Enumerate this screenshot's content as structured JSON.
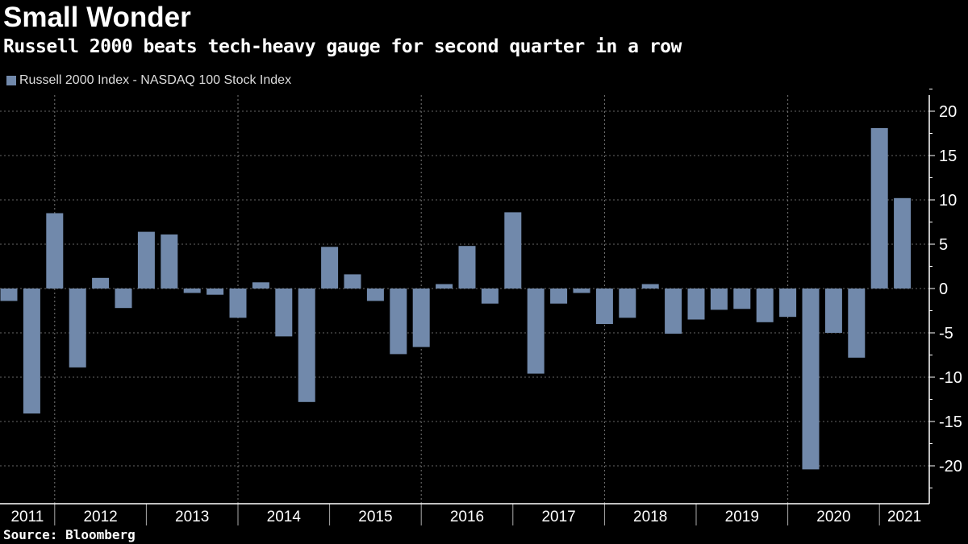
{
  "title": "Small Wonder",
  "subtitle": "Russell 2000 beats tech-heavy gauge for second quarter in a row",
  "source": "Source: Bloomberg",
  "chart_data": {
    "type": "bar",
    "title": "Small Wonder",
    "subtitle": "Russell 2000 beats tech-heavy gauge for second quarter in a row",
    "xlabel": "",
    "ylabel": "",
    "ylim": [
      -24,
      22
    ],
    "yticks": [
      20,
      15,
      10,
      5,
      0,
      -5,
      -10,
      -15,
      -20
    ],
    "ytick_labels": [
      "20",
      "15",
      "10",
      "5",
      "0",
      "-5",
      "-10",
      "-15",
      "-20"
    ],
    "y_axis_side": "right",
    "grid": true,
    "legend_placement": "top-left",
    "bar_color": "#7189ab",
    "year_labels": [
      "2011",
      "2012",
      "2013",
      "2014",
      "2015",
      "2016",
      "2017",
      "2018",
      "2019",
      "2020",
      "2021"
    ],
    "categories": [
      "2011 Q2",
      "2011 Q3",
      "2011 Q4",
      "2012 Q1",
      "2012 Q2",
      "2012 Q3",
      "2012 Q4",
      "2013 Q1",
      "2013 Q2",
      "2013 Q3",
      "2013 Q4",
      "2014 Q1",
      "2014 Q2",
      "2014 Q3",
      "2014 Q4",
      "2015 Q1",
      "2015 Q2",
      "2015 Q3",
      "2015 Q4",
      "2016 Q1",
      "2016 Q2",
      "2016 Q3",
      "2016 Q4",
      "2017 Q1",
      "2017 Q2",
      "2017 Q3",
      "2017 Q4",
      "2018 Q1",
      "2018 Q2",
      "2018 Q3",
      "2018 Q4",
      "2019 Q1",
      "2019 Q2",
      "2019 Q3",
      "2019 Q4",
      "2020 Q1",
      "2020 Q2",
      "2020 Q3",
      "2020 Q4",
      "2021 Q1"
    ],
    "series": [
      {
        "name": "Russell 2000 Index - NASDAQ 100 Stock Index",
        "values": [
          -1.4,
          -14.1,
          8.5,
          -8.9,
          1.2,
          -2.2,
          6.4,
          6.1,
          -0.5,
          -0.7,
          -3.3,
          0.7,
          -5.4,
          -12.8,
          4.7,
          1.6,
          -1.4,
          -7.4,
          -6.6,
          0.5,
          4.8,
          -1.7,
          8.6,
          -9.6,
          -1.7,
          -0.5,
          -4.0,
          -3.3,
          0.5,
          -5.1,
          -3.5,
          -2.4,
          -2.3,
          -3.8,
          -3.2,
          -20.4,
          -5.0,
          -7.8,
          18.1,
          10.2
        ]
      }
    ]
  }
}
